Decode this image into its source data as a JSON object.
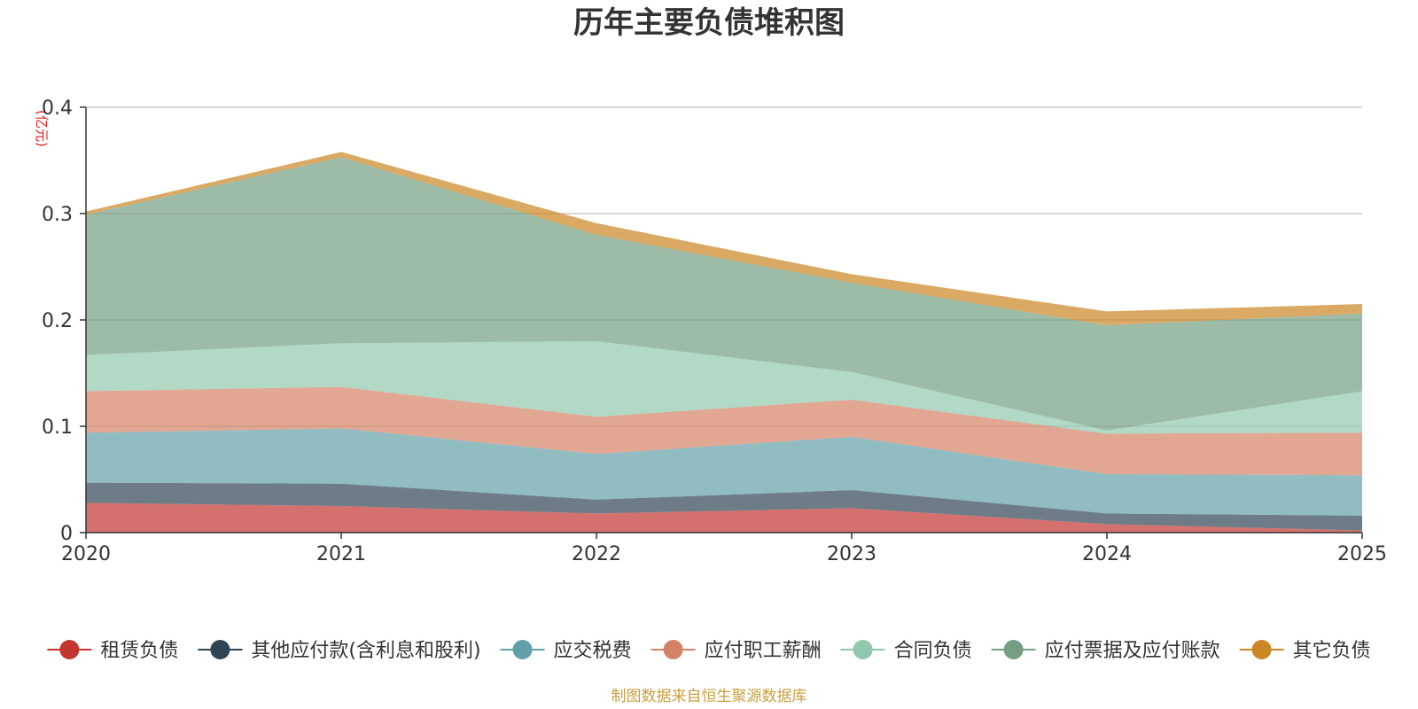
{
  "chart_data": {
    "type": "area",
    "stacked": true,
    "title": "历年主要负债堆积图",
    "ylabel": "(亿元)",
    "xlabel": "",
    "x": [
      "2020",
      "2021",
      "2022",
      "2023",
      "2024",
      "2025"
    ],
    "ylim": [
      0,
      0.4
    ],
    "yticks": [
      0,
      0.1,
      0.2,
      0.3,
      0.4
    ],
    "ytick_labels": [
      "0",
      "0.1",
      "0.2",
      "0.3",
      "0.4"
    ],
    "grid": true,
    "legend_position": "bottom",
    "series": [
      {
        "name": "租赁负债",
        "color": "#c23531",
        "values": [
          0.028,
          0.025,
          0.018,
          0.023,
          0.008,
          0.002
        ]
      },
      {
        "name": "其他应付款(含利息和股利)",
        "color": "#2f4554",
        "values": [
          0.019,
          0.021,
          0.013,
          0.017,
          0.01,
          0.014
        ]
      },
      {
        "name": "应交税费",
        "color": "#61a0a8",
        "values": [
          0.047,
          0.052,
          0.043,
          0.05,
          0.037,
          0.038
        ]
      },
      {
        "name": "应付职工薪酬",
        "color": "#d48265",
        "values": [
          0.039,
          0.039,
          0.035,
          0.035,
          0.038,
          0.04
        ]
      },
      {
        "name": "合同负债",
        "color": "#91c7ae",
        "values": [
          0.034,
          0.041,
          0.071,
          0.026,
          0.003,
          0.039
        ]
      },
      {
        "name": "应付票据及应付账款",
        "color": "#749f83",
        "values": [
          0.132,
          0.175,
          0.1,
          0.084,
          0.099,
          0.073
        ]
      },
      {
        "name": "其它负债",
        "color": "#ca8622",
        "values": [
          0.003,
          0.005,
          0.011,
          0.008,
          0.013,
          0.009
        ]
      }
    ]
  },
  "footer": {
    "source": "制图数据来自恒生聚源数据库"
  }
}
